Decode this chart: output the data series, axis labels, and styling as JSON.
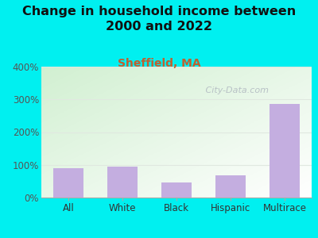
{
  "title": "Change in household income between\n2000 and 2022",
  "subtitle": "Sheffield, MA",
  "categories": [
    "All",
    "White",
    "Black",
    "Hispanic",
    "Multirace"
  ],
  "values": [
    90,
    95,
    47,
    68,
    287
  ],
  "bar_color": "#c4aee0",
  "title_fontsize": 11.5,
  "title_color": "#111111",
  "subtitle_fontsize": 10,
  "subtitle_color": "#c06030",
  "background_color": "#00f0f0",
  "plot_bg_color_topleft": "#d4ecd4",
  "plot_bg_color_bottomright": "#f0f8f0",
  "ylim": [
    0,
    400
  ],
  "yticks": [
    0,
    100,
    200,
    300,
    400
  ],
  "ytick_labels": [
    "0%",
    "100%",
    "200%",
    "300%",
    "400%"
  ],
  "watermark": " City-Data.com",
  "watermark_color": "#b0b8c0",
  "grid_color": "#e0e8e0",
  "tick_label_color": "#555555",
  "xtick_label_color": "#333333"
}
